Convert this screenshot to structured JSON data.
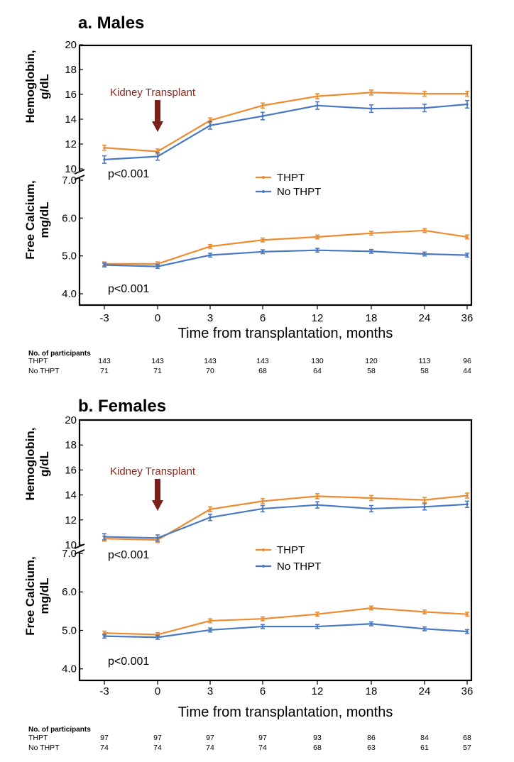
{
  "x_axis": {
    "label": "Time from transplantation, months",
    "ticks": [
      "-3",
      "0",
      "3",
      "6",
      "12",
      "18",
      "24",
      "36"
    ]
  },
  "legend": {
    "thpt": "THPT",
    "no_thpt": "No THPT"
  },
  "annotation": {
    "transplant": "Kidney Transplant"
  },
  "colors": {
    "thpt": "#ee8a2f",
    "no_thpt": "#4a78c2",
    "arrow": "#7a1f1a",
    "frame": "#000000"
  },
  "participants": {
    "title": "No. of participants",
    "row_thpt": "THPT",
    "row_no_thpt": "No THPT"
  },
  "chart_data": [
    {
      "panel": "a",
      "title": "a. Males",
      "type": "line",
      "categories": [
        "-3",
        "0",
        "3",
        "6",
        "12",
        "18",
        "24",
        "36"
      ],
      "hemoglobin": {
        "ylabel_line1": "Hemoglobin,",
        "ylabel_line2": "g/dL",
        "ylim": [
          10,
          20
        ],
        "yticks": [
          "10",
          "12",
          "14",
          "16",
          "18",
          "20"
        ],
        "pvalue": "p<0.001",
        "series": [
          {
            "name": "THPT",
            "values": [
              11.7,
              11.4,
              13.9,
              15.1,
              15.85,
              16.15,
              16.05,
              16.05
            ],
            "err": 0.2
          },
          {
            "name": "No THPT",
            "values": [
              10.75,
              11.0,
              13.5,
              14.25,
              15.1,
              14.85,
              14.9,
              15.2
            ],
            "err": 0.3
          }
        ]
      },
      "calcium": {
        "ylabel_line1": "Free Calcium,",
        "ylabel_line2": "mg/dL",
        "ylim": [
          3.7,
          7.0
        ],
        "yticks": [
          "4.0",
          "5.0",
          "6.0",
          "7.0"
        ],
        "pvalue": "p<0.001",
        "series": [
          {
            "name": "THPT",
            "values": [
              4.79,
              4.79,
              5.25,
              5.42,
              5.5,
              5.6,
              5.67,
              5.5
            ],
            "err": 0.05
          },
          {
            "name": "No THPT",
            "values": [
              4.76,
              4.72,
              5.02,
              5.11,
              5.15,
              5.12,
              5.05,
              5.02
            ],
            "err": 0.05
          }
        ]
      },
      "participants": {
        "thpt": [
          "143",
          "143",
          "143",
          "143",
          "130",
          "120",
          "113",
          "96"
        ],
        "no_thpt": [
          "71",
          "71",
          "70",
          "68",
          "64",
          "58",
          "58",
          "44"
        ]
      }
    },
    {
      "panel": "b",
      "title": "b. Females",
      "type": "line",
      "categories": [
        "-3",
        "0",
        "3",
        "6",
        "12",
        "18",
        "24",
        "36"
      ],
      "hemoglobin": {
        "ylabel_line1": "Hemoglobin,",
        "ylabel_line2": "g/dL",
        "ylim": [
          10,
          20
        ],
        "yticks": [
          "10",
          "12",
          "14",
          "16",
          "18",
          "20"
        ],
        "pvalue": "p<0.001",
        "series": [
          {
            "name": "THPT",
            "values": [
              10.5,
              10.4,
              12.85,
              13.5,
              13.9,
              13.75,
              13.6,
              13.95
            ],
            "err": 0.2
          },
          {
            "name": "No THPT",
            "values": [
              10.65,
              10.55,
              12.2,
              12.9,
              13.2,
              12.9,
              13.05,
              13.25
            ],
            "err": 0.25
          }
        ]
      },
      "calcium": {
        "ylabel_line1": "Free Calcium,",
        "ylabel_line2": "mg/dL",
        "ylim": [
          3.7,
          7.0
        ],
        "yticks": [
          "4.0",
          "5.0",
          "6.0",
          "7.0"
        ],
        "pvalue": "p<0.001",
        "series": [
          {
            "name": "THPT",
            "values": [
              4.93,
              4.89,
              5.25,
              5.3,
              5.42,
              5.58,
              5.48,
              5.42
            ],
            "err": 0.05
          },
          {
            "name": "No THPT",
            "values": [
              4.85,
              4.82,
              5.01,
              5.1,
              5.1,
              5.17,
              5.04,
              4.97
            ],
            "err": 0.05
          }
        ]
      },
      "participants": {
        "thpt": [
          "97",
          "97",
          "97",
          "97",
          "93",
          "86",
          "84",
          "68"
        ],
        "no_thpt": [
          "74",
          "74",
          "74",
          "74",
          "68",
          "63",
          "61",
          "57"
        ]
      }
    }
  ]
}
